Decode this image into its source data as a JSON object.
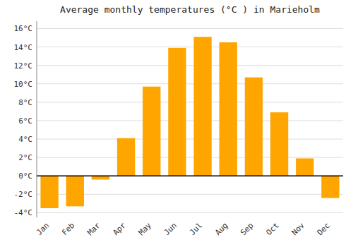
{
  "chart_data": {
    "type": "bar",
    "title": "Average monthly temperatures (°C ) in Marieholm",
    "categories": [
      "Jan",
      "Feb",
      "Mar",
      "Apr",
      "May",
      "Jun",
      "Jul",
      "Aug",
      "Sep",
      "Oct",
      "Nov",
      "Dec"
    ],
    "values": [
      -3.5,
      -3.3,
      -0.4,
      4.1,
      9.7,
      13.9,
      15.1,
      14.5,
      10.7,
      6.9,
      1.9,
      -2.4
    ],
    "color": "#FFA500",
    "ylim": [
      -4.5,
      16.8
    ],
    "yticks": [
      {
        "value": -4,
        "label": "-4°C"
      },
      {
        "value": -2,
        "label": "-2°C"
      },
      {
        "value": 0,
        "label": "0°C"
      },
      {
        "value": 2,
        "label": "2°C"
      },
      {
        "value": 4,
        "label": "4°C"
      },
      {
        "value": 6,
        "label": "6°C"
      },
      {
        "value": 8,
        "label": "8°C"
      },
      {
        "value": 10,
        "label": "10°C"
      },
      {
        "value": 12,
        "label": "12°C"
      },
      {
        "value": 14,
        "label": "14°C"
      },
      {
        "value": 16,
        "label": "16°C"
      }
    ],
    "grid": true
  }
}
